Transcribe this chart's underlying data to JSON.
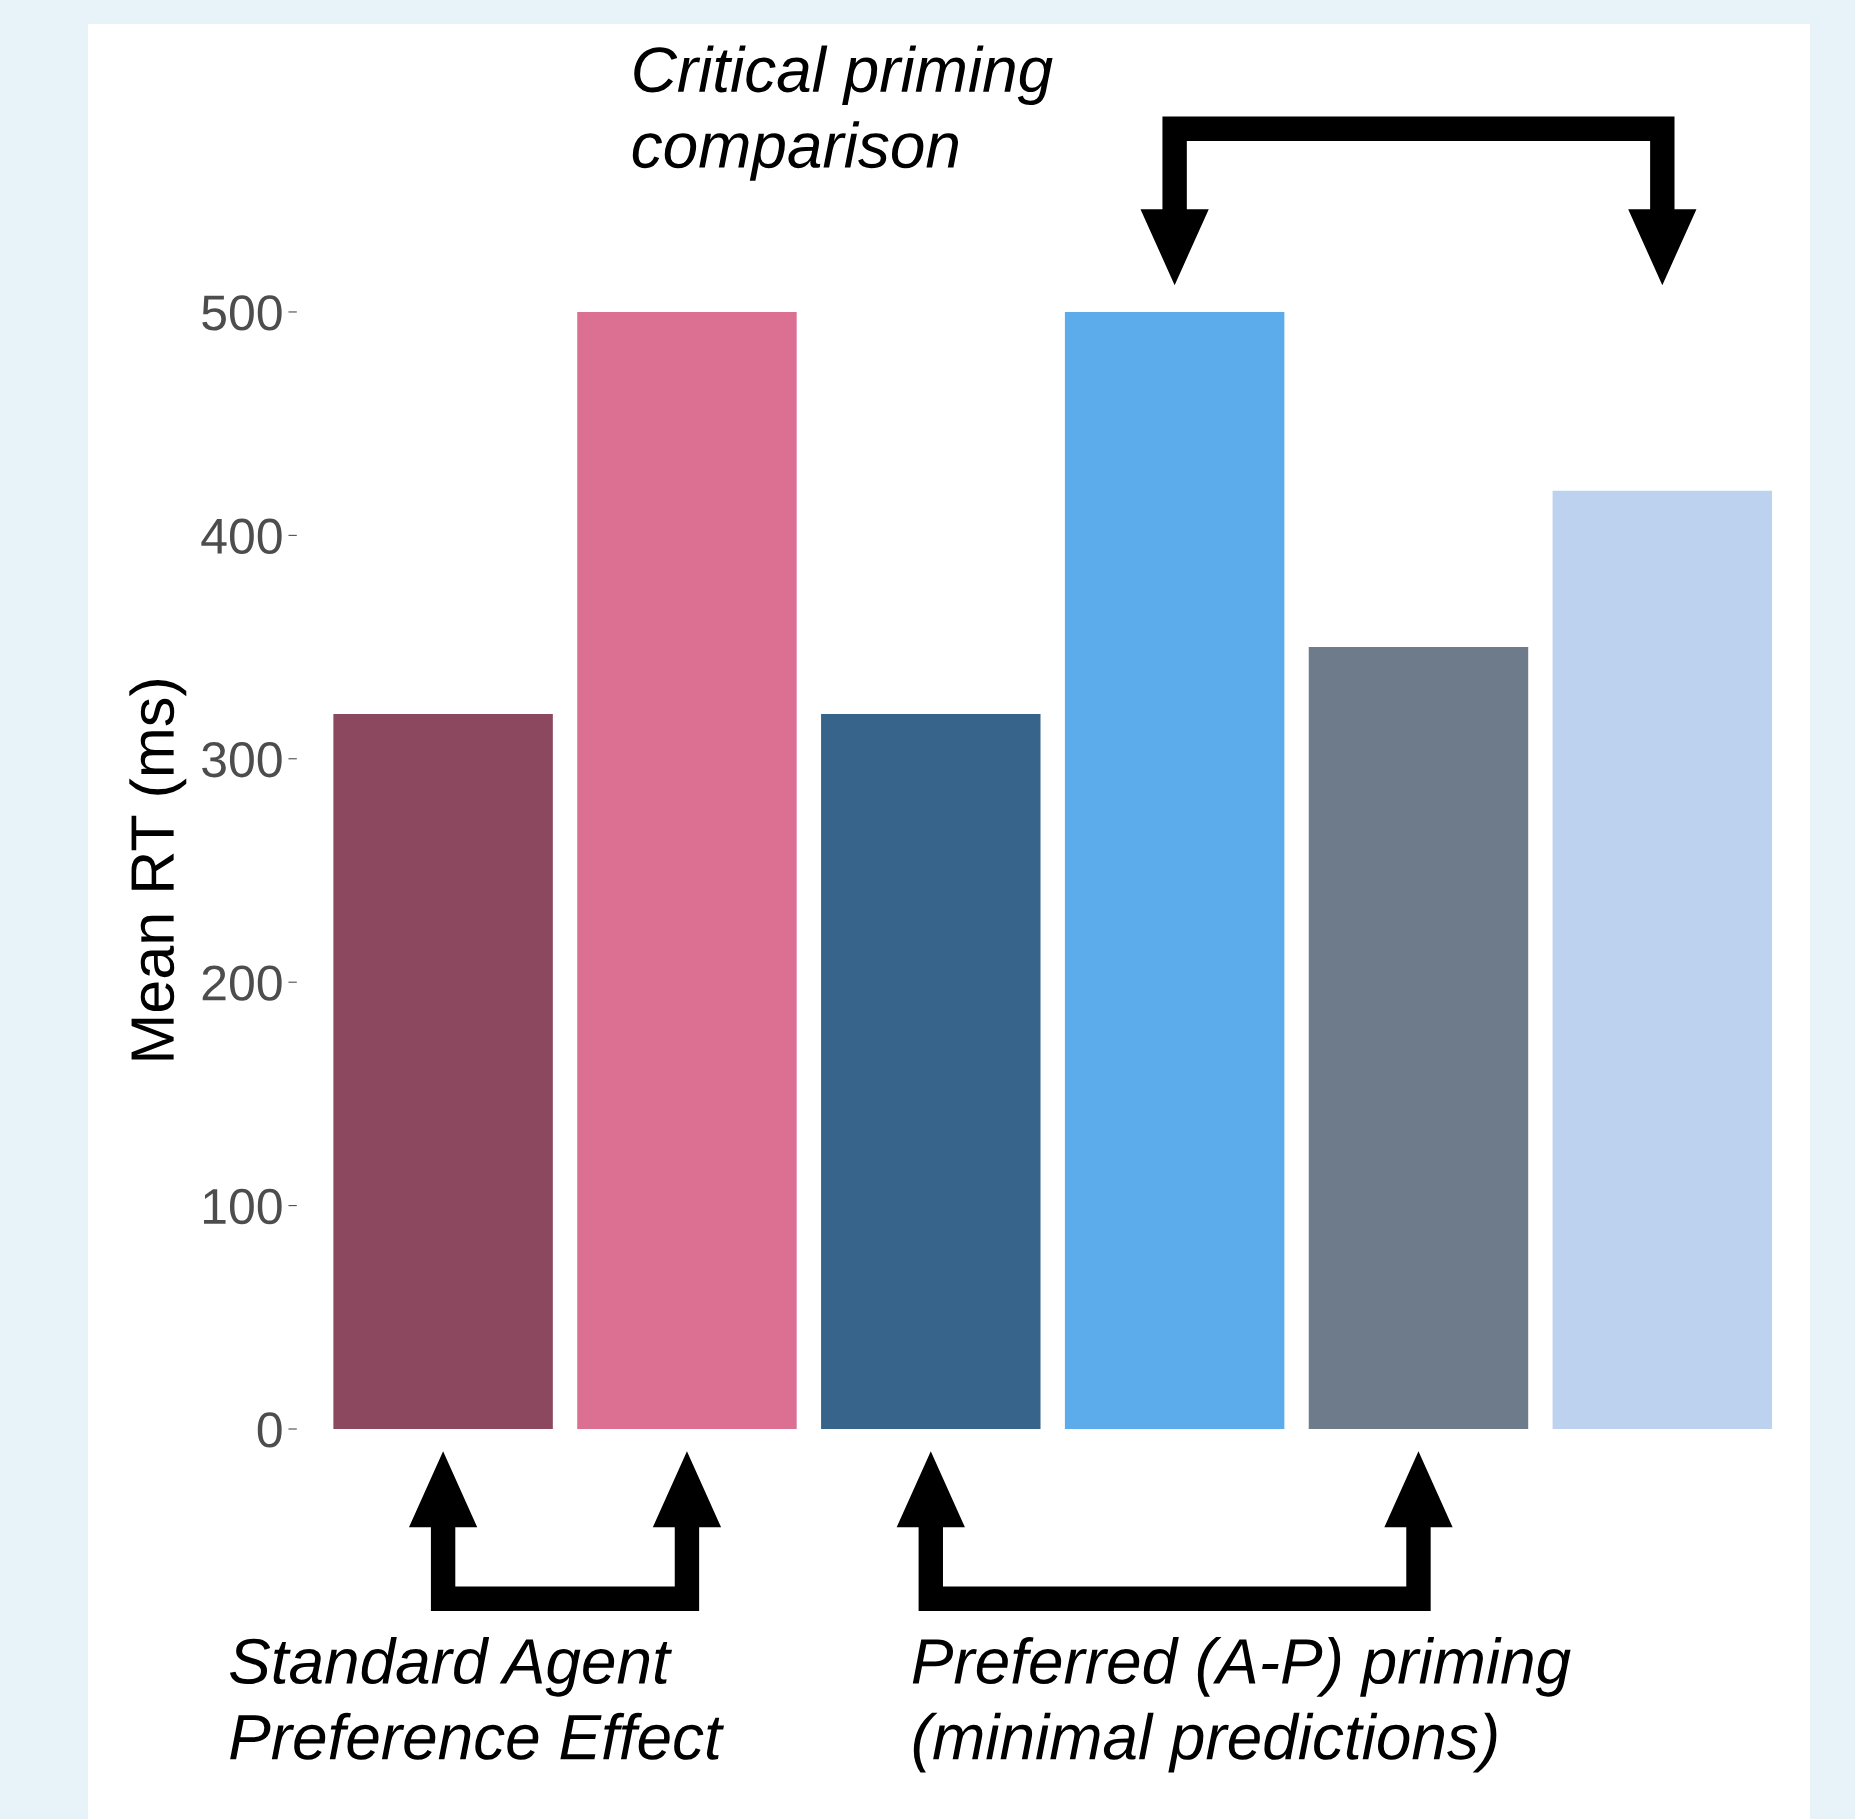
{
  "chart_data": {
    "type": "bar",
    "categories": [
      null,
      null,
      null,
      null,
      null,
      null
    ],
    "values": [
      320,
      500,
      320,
      500,
      350,
      420
    ],
    "colors": [
      "#8b485e",
      "#db7093",
      "#36648b",
      "#5cacec",
      "#6e7b8b",
      "#bcd2ee"
    ],
    "ylabel": "Mean RT (ms)",
    "ylim": [
      0,
      500
    ],
    "yticks": [
      0,
      100,
      200,
      300,
      400,
      500
    ],
    "grid": false,
    "annotations": [
      "Critical priming\ncomparison",
      "Standard Agent\nPreference Effect",
      "Preferred (A-P) priming\n(minimal predictions)"
    ]
  }
}
